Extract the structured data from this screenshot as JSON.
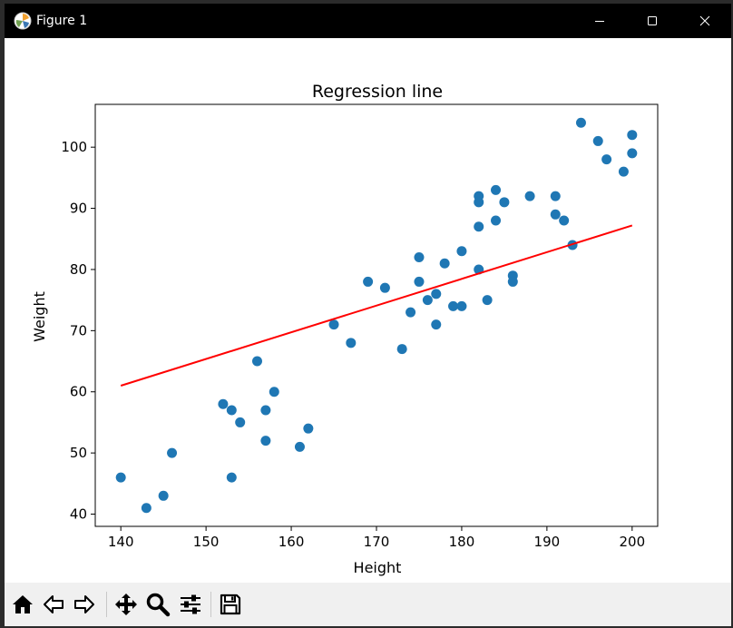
{
  "window": {
    "title": "Figure 1",
    "controls": [
      "minimize",
      "maximize",
      "close"
    ]
  },
  "toolbar": {
    "buttons": [
      {
        "name": "home",
        "icon": "home-icon"
      },
      {
        "name": "back",
        "icon": "arrow-left-icon"
      },
      {
        "name": "forward",
        "icon": "arrow-right-icon"
      },
      {
        "name": "pan",
        "icon": "move-icon"
      },
      {
        "name": "zoom",
        "icon": "magnifier-icon"
      },
      {
        "name": "configure-subplots",
        "icon": "sliders-icon"
      },
      {
        "name": "save",
        "icon": "floppy-disk-icon"
      }
    ]
  },
  "colors": {
    "points": "#1f77b4",
    "regression_line": "#ff0000"
  },
  "chart_data": {
    "type": "scatter",
    "title": "Regression line",
    "xlabel": "Height",
    "ylabel": "Weight",
    "xlim": [
      137,
      203
    ],
    "ylim": [
      38,
      107
    ],
    "xticks": [
      140,
      150,
      160,
      170,
      180,
      190,
      200
    ],
    "yticks": [
      40,
      50,
      60,
      70,
      80,
      90,
      100
    ],
    "grid": false,
    "points": [
      {
        "x": 140,
        "y": 46
      },
      {
        "x": 143,
        "y": 41
      },
      {
        "x": 145,
        "y": 43
      },
      {
        "x": 146,
        "y": 50
      },
      {
        "x": 152,
        "y": 58
      },
      {
        "x": 153,
        "y": 57
      },
      {
        "x": 153,
        "y": 46
      },
      {
        "x": 154,
        "y": 55
      },
      {
        "x": 156,
        "y": 65
      },
      {
        "x": 157,
        "y": 57
      },
      {
        "x": 157,
        "y": 52
      },
      {
        "x": 158,
        "y": 60
      },
      {
        "x": 161,
        "y": 51
      },
      {
        "x": 162,
        "y": 54
      },
      {
        "x": 165,
        "y": 71
      },
      {
        "x": 167,
        "y": 68
      },
      {
        "x": 169,
        "y": 78
      },
      {
        "x": 171,
        "y": 77
      },
      {
        "x": 173,
        "y": 67
      },
      {
        "x": 174,
        "y": 73
      },
      {
        "x": 175,
        "y": 82
      },
      {
        "x": 175,
        "y": 78
      },
      {
        "x": 176,
        "y": 75
      },
      {
        "x": 177,
        "y": 76
      },
      {
        "x": 177,
        "y": 71
      },
      {
        "x": 178,
        "y": 81
      },
      {
        "x": 179,
        "y": 74
      },
      {
        "x": 180,
        "y": 83
      },
      {
        "x": 180,
        "y": 74
      },
      {
        "x": 182,
        "y": 92
      },
      {
        "x": 182,
        "y": 91
      },
      {
        "x": 182,
        "y": 87
      },
      {
        "x": 182,
        "y": 80
      },
      {
        "x": 183,
        "y": 75
      },
      {
        "x": 184,
        "y": 93
      },
      {
        "x": 184,
        "y": 88
      },
      {
        "x": 185,
        "y": 91
      },
      {
        "x": 186,
        "y": 79
      },
      {
        "x": 186,
        "y": 78
      },
      {
        "x": 188,
        "y": 92
      },
      {
        "x": 191,
        "y": 92
      },
      {
        "x": 191,
        "y": 89
      },
      {
        "x": 192,
        "y": 88
      },
      {
        "x": 193,
        "y": 84
      },
      {
        "x": 194,
        "y": 104
      },
      {
        "x": 196,
        "y": 101
      },
      {
        "x": 197,
        "y": 98
      },
      {
        "x": 199,
        "y": 96
      },
      {
        "x": 200,
        "y": 102
      },
      {
        "x": 200,
        "y": 99
      }
    ],
    "regression_line": {
      "x": [
        140,
        200
      ],
      "y": [
        61,
        87.2
      ]
    }
  }
}
